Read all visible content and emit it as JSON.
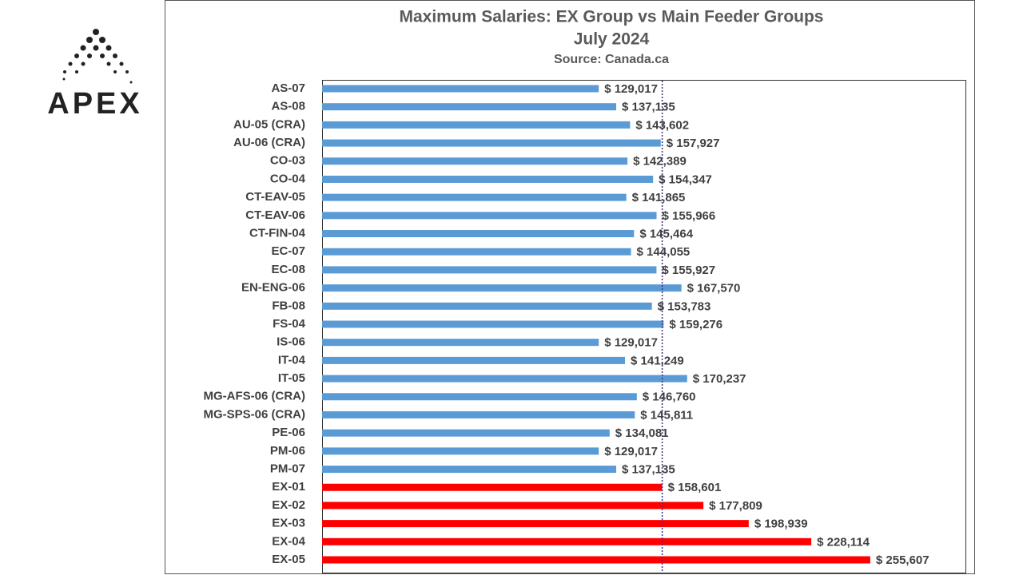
{
  "logo": {
    "text": "APEX"
  },
  "chart_data": {
    "type": "barh",
    "title": "Maximum Salaries: EX Group vs Main Feeder Groups",
    "subtitle": "July 2024",
    "source": "Source: Canada.ca",
    "categories": [
      "AS-07",
      "AS-08",
      "AU-05 (CRA)",
      "AU-06 (CRA)",
      "CO-03",
      "CO-04",
      "CT-EAV-05",
      "CT-EAV-06",
      "CT-FIN-04",
      "EC-07",
      "EC-08",
      "EN-ENG-06",
      "FB-08",
      "FS-04",
      "IS-06",
      "IT-04",
      "IT-05",
      "MG-AFS-06 (CRA)",
      "MG-SPS-06 (CRA)",
      "PE-06",
      "PM-06",
      "PM-07",
      "EX-01",
      "EX-02",
      "EX-03",
      "EX-04",
      "EX-05"
    ],
    "values": [
      129017,
      137135,
      143602,
      157927,
      142389,
      154347,
      141865,
      155966,
      145464,
      144055,
      155927,
      167570,
      153783,
      159276,
      129017,
      141249,
      170237,
      146760,
      145811,
      134081,
      129017,
      137135,
      158601,
      177809,
      198939,
      228114,
      255607
    ],
    "value_labels": [
      "$ 129,017",
      "$ 137,135",
      "$ 143,602",
      "$ 157,927",
      "$ 142,389",
      "$ 154,347",
      "$ 141,865",
      "$ 155,966",
      "$ 145,464",
      "$ 144,055",
      "$ 155,927",
      "$ 167,570",
      "$ 153,783",
      "$ 159,276",
      "$ 129,017",
      "$ 141,249",
      "$ 170,237",
      "$ 146,760",
      "$ 145,811",
      "$ 134,081",
      "$ 129,017",
      "$ 137,135",
      "$ 158,601",
      "$ 177,809",
      "$ 198,939",
      "$ 228,114",
      "$ 255,607"
    ],
    "colors": [
      "#5b9bd5",
      "#5b9bd5",
      "#5b9bd5",
      "#5b9bd5",
      "#5b9bd5",
      "#5b9bd5",
      "#5b9bd5",
      "#5b9bd5",
      "#5b9bd5",
      "#5b9bd5",
      "#5b9bd5",
      "#5b9bd5",
      "#5b9bd5",
      "#5b9bd5",
      "#5b9bd5",
      "#5b9bd5",
      "#5b9bd5",
      "#5b9bd5",
      "#5b9bd5",
      "#5b9bd5",
      "#5b9bd5",
      "#5b9bd5",
      "#ff0000",
      "#ff0000",
      "#ff0000",
      "#ff0000",
      "#ff0000"
    ],
    "reference_value": 158601,
    "xlim": [
      0,
      300000
    ]
  }
}
